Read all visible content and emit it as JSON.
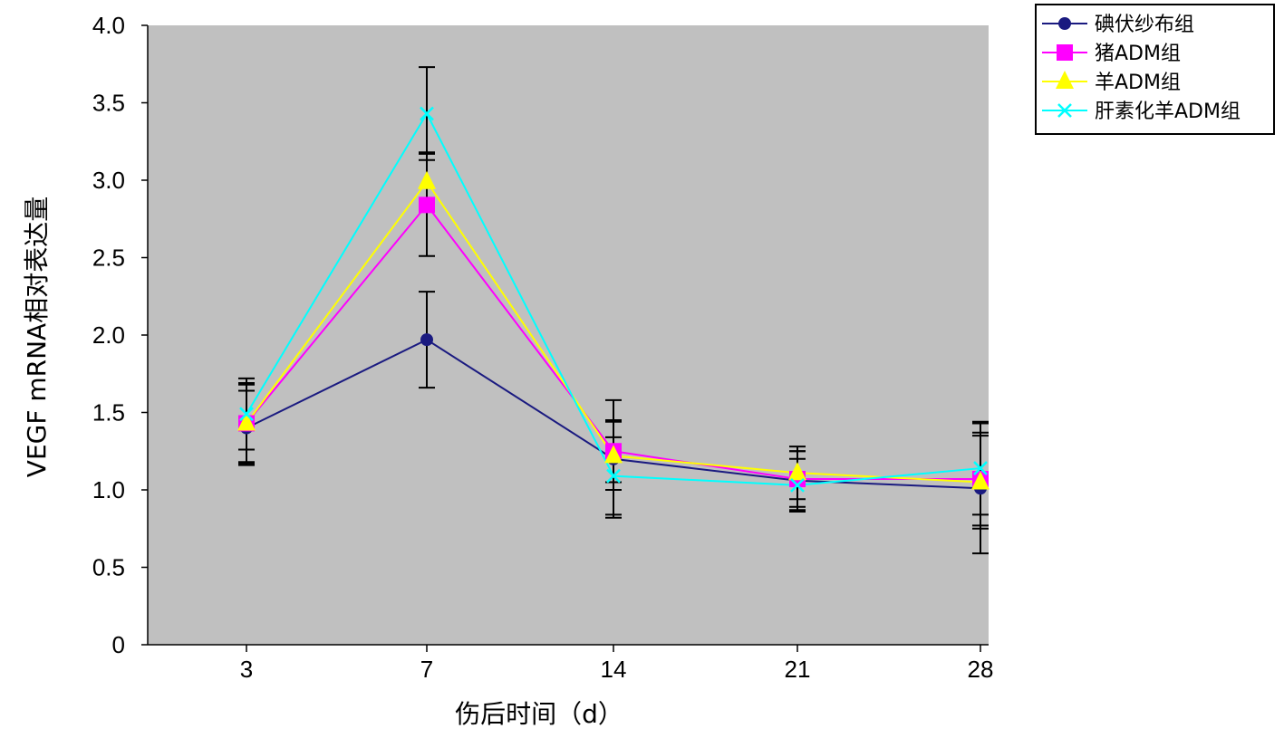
{
  "chart_data": {
    "type": "line",
    "x": [
      "3",
      "7",
      "14",
      "21",
      "28"
    ],
    "xlabel": "伤后时间（d）",
    "ylabel": "VEGF mRNA相对表达量",
    "ylim": [
      0,
      4.0
    ],
    "yticks": [
      "0",
      "0.5",
      "1.0",
      "1.5",
      "2.0",
      "2.5",
      "3.0",
      "3.5",
      "4.0"
    ],
    "grid": false,
    "legend_position": "top-right",
    "plot_background": "#c0c0c0",
    "series": [
      {
        "name": "碘伏纱布组",
        "color": "#1a1a80",
        "marker": "diamond",
        "values": [
          1.4,
          1.97,
          1.2,
          1.06,
          1.01
        ],
        "errors": [
          0.24,
          0.31,
          0.38,
          0.19,
          0.42
        ]
      },
      {
        "name": "猪ADM组",
        "color": "#ff00ff",
        "marker": "square",
        "values": [
          1.43,
          2.84,
          1.25,
          1.07,
          1.07
        ],
        "errors": [
          0.25,
          0.33,
          0.2,
          0.18,
          0.3
        ]
      },
      {
        "name": "羊ADM组",
        "color": "#ffff00",
        "marker": "triangle",
        "values": [
          1.43,
          2.99,
          1.22,
          1.11,
          1.05
        ],
        "errors": [
          0.26,
          0.19,
          0.22,
          0.17,
          0.3
        ]
      },
      {
        "name": "肝素化羊ADM组",
        "color": "#00ffff",
        "marker": "x",
        "values": [
          1.49,
          3.43,
          1.09,
          1.03,
          1.14
        ],
        "errors": [
          0.23,
          0.3,
          0.25,
          0.17,
          0.3
        ]
      }
    ]
  }
}
